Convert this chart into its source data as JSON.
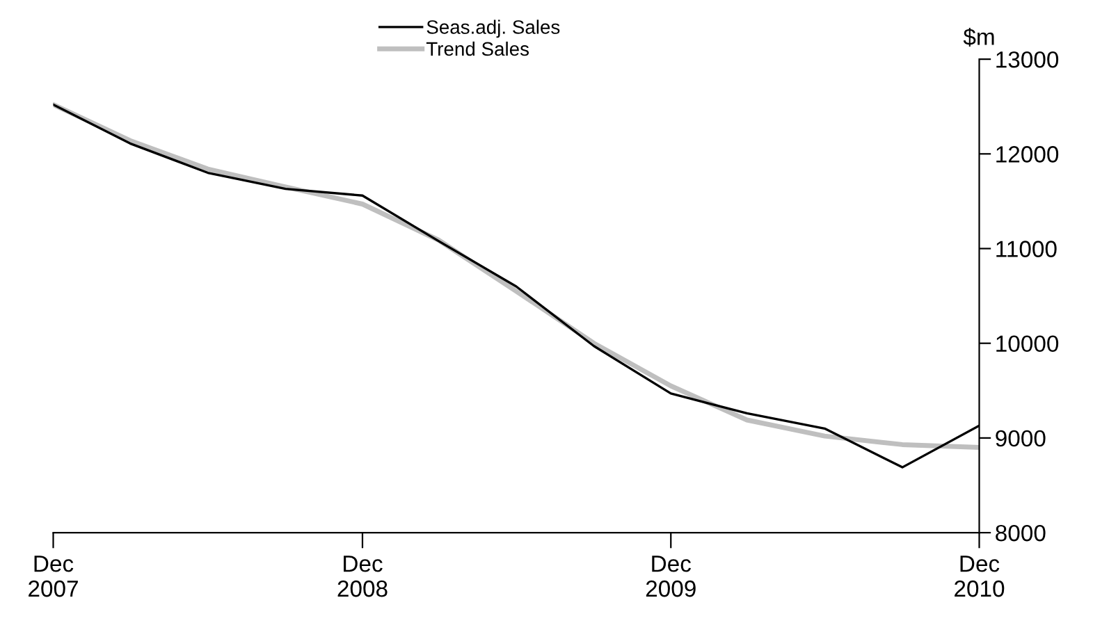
{
  "chart_data": {
    "type": "line",
    "ylabel": "$m",
    "x": [
      "2007-12",
      "2008-03",
      "2008-06",
      "2008-09",
      "2008-12",
      "2009-03",
      "2009-06",
      "2009-09",
      "2009-12",
      "2010-03",
      "2010-06",
      "2010-09",
      "2010-12"
    ],
    "series": [
      {
        "name": "Seas.adj. Sales",
        "color": "#000000",
        "values": [
          12520,
          12110,
          11800,
          11630,
          11560,
          11080,
          10600,
          9970,
          9470,
          9260,
          9100,
          8690,
          9130
        ]
      },
      {
        "name": "Trend Sales",
        "color": "#bfbfbf",
        "values": [
          12520,
          12140,
          11840,
          11650,
          11470,
          11090,
          10550,
          10000,
          9550,
          9190,
          9020,
          8930,
          8900
        ]
      }
    ],
    "xlim": [
      "2007-12",
      "2010-12"
    ],
    "xticks": [
      {
        "value": "2007-12",
        "label": "Dec\n2007"
      },
      {
        "value": "2008-12",
        "label": "Dec\n2008"
      },
      {
        "value": "2009-12",
        "label": "Dec\n2009"
      },
      {
        "value": "2010-12",
        "label": "Dec\n2010"
      }
    ],
    "ylim": [
      8000,
      13000
    ],
    "yticks": [
      8000,
      9000,
      10000,
      11000,
      12000,
      13000
    ],
    "grid": false,
    "legend": "top",
    "marker": "none",
    "line_style": "solid"
  }
}
